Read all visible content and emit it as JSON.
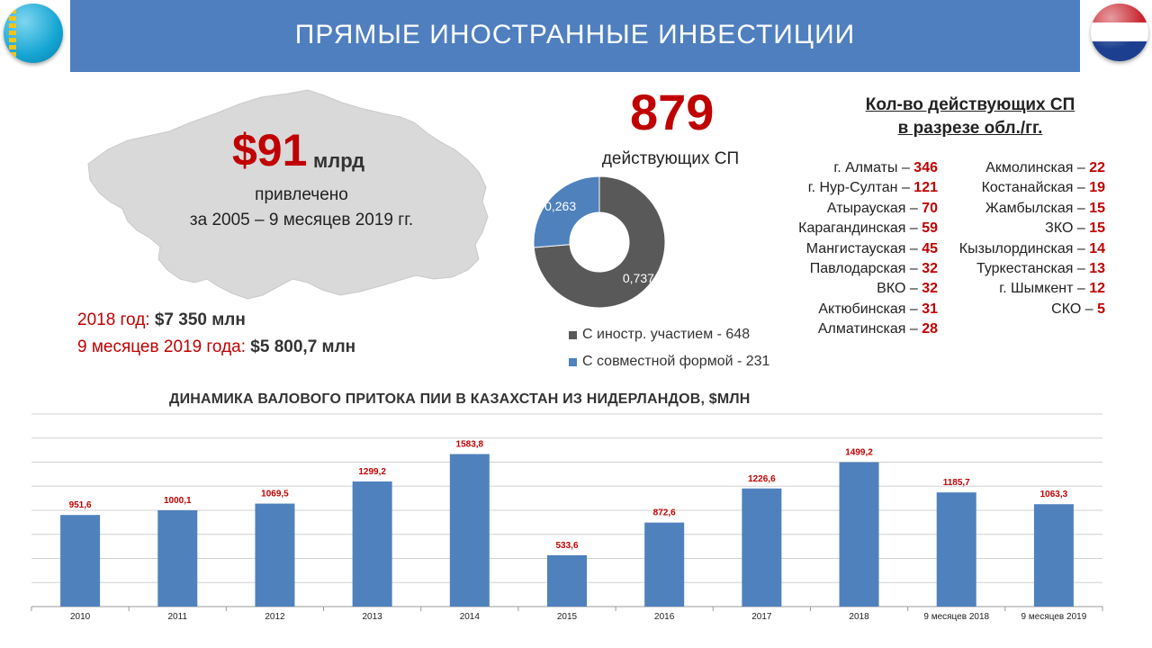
{
  "header": {
    "title": "ПРЯМЫЕ ИНОСТРАННЫЕ ИНВЕСТИЦИИ"
  },
  "investment": {
    "amount": "$91",
    "unit": "млрд",
    "attracted_label": "привлечено",
    "period": "за 2005 – 9 месяцев 2019 гг.",
    "year_2018_label": "2018 год: ",
    "year_2018_value": "$7 350 млн",
    "months_2019_label": "9 месяцев 2019 года: ",
    "months_2019_value": "$5 800,7 млн"
  },
  "joint_ventures": {
    "count": "879",
    "label": "действующих СП",
    "donut": {
      "slices": [
        {
          "label": "С иностр. участием - 648",
          "share": 0.737,
          "share_text": "0,737",
          "color": "#595959"
        },
        {
          "label": "С совместной формой - 231",
          "share": 0.263,
          "share_text": "0,263",
          "color": "#4f81bd"
        }
      ]
    }
  },
  "regions": {
    "title_line1": "Кол-во действующих СП",
    "title_line2": "в разрезе обл./гг.",
    "left": [
      {
        "name": "г. Алматы – ",
        "value": "346"
      },
      {
        "name": "г. Нур-Султан – ",
        "value": "121"
      },
      {
        "name": "Атырауская – ",
        "value": "70"
      },
      {
        "name": "Карагандинская – ",
        "value": "59"
      },
      {
        "name": "Мангистауская – ",
        "value": "45"
      },
      {
        "name": "Павлодарская – ",
        "value": "32"
      },
      {
        "name": "ВКО – ",
        "value": "32"
      },
      {
        "name": "Актюбинская – ",
        "value": "31"
      },
      {
        "name": "Алматинская – ",
        "value": "28"
      }
    ],
    "right": [
      {
        "name": "Акмолинская – ",
        "value": "22"
      },
      {
        "name": "Костанайская – ",
        "value": "19"
      },
      {
        "name": "Жамбылская – ",
        "value": "15"
      },
      {
        "name": "ЗКО – ",
        "value": "15"
      },
      {
        "name": "Кызылординская – ",
        "value": "14"
      },
      {
        "name": "Туркестанская – ",
        "value": "13"
      },
      {
        "name": "г. Шымкент – ",
        "value": "12"
      },
      {
        "name": "СКО – ",
        "value": "5"
      }
    ]
  },
  "chart_data": {
    "type": "bar",
    "title": "ДИНАМИКА ВАЛОВОГО ПРИТОКА ПИИ В КАЗАХСТАН ИЗ НИДЕРЛАНДОВ, $МЛН",
    "categories": [
      "2010",
      "2011",
      "2012",
      "2013",
      "2014",
      "2015",
      "2016",
      "2017",
      "2018",
      "9 месяцев 2018",
      "9 месяцев 2019"
    ],
    "values": [
      951.6,
      1000.1,
      1069.5,
      1299.2,
      1583.8,
      533.6,
      872.6,
      1226.6,
      1499.2,
      1185.7,
      1063.3
    ],
    "value_labels": [
      "951,6",
      "1000,1",
      "1069,5",
      "1299,2",
      "1583,8",
      "533,6",
      "872,6",
      "1226,6",
      "1499,2",
      "1185,7",
      "1063,3"
    ],
    "ylim": [
      0,
      2000
    ],
    "grid": true,
    "bar_color": "#4f81bd",
    "label_color": "#c00000"
  }
}
